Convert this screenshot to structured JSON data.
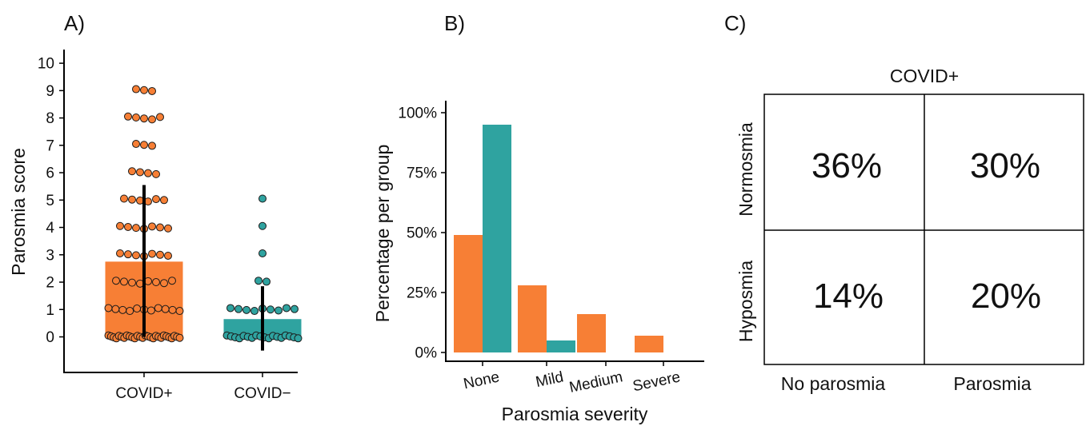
{
  "panels": {
    "a": "A)",
    "b": "B)",
    "c": "C)"
  },
  "colors": {
    "covid_pos": "#f77f35",
    "covid_neg": "#2fa3a0",
    "point_stroke": "#1a1a1a",
    "errorbar": "#000000"
  },
  "chart_data": [
    {
      "type": "bar",
      "ylabel": "Parosmia score",
      "xlabel": "",
      "categories": [
        "COVID+",
        "COVID−"
      ],
      "yticks": [
        0,
        1,
        2,
        3,
        4,
        5,
        6,
        7,
        8,
        9,
        10
      ],
      "ylim": [
        -1.3,
        10.5
      ],
      "means": [
        2.75,
        0.65
      ],
      "error_bars": [
        [
          0,
          5.55
        ],
        [
          -0.5,
          1.85
        ]
      ],
      "bar_colors": [
        "#f77f35",
        "#2fa3a0"
      ],
      "points": [
        [
          0,
          0,
          0,
          0,
          0,
          0,
          0,
          0,
          0,
          0,
          0,
          0,
          0,
          0,
          0,
          0,
          0,
          0,
          0,
          0,
          0,
          0,
          0,
          0,
          0,
          0,
          0,
          0,
          1,
          1,
          1,
          1,
          1,
          1,
          1,
          1,
          1,
          1,
          1,
          2,
          2,
          2,
          2,
          2,
          2,
          2,
          2,
          3,
          3,
          3,
          3,
          3,
          3,
          3,
          4,
          4,
          4,
          4,
          4,
          4,
          4,
          5,
          5,
          5,
          5,
          5,
          5,
          6,
          6,
          6,
          6,
          7,
          7,
          7,
          8,
          8,
          8,
          8,
          8,
          9,
          9,
          9
        ],
        [
          0,
          0,
          0,
          0,
          0,
          0,
          0,
          0,
          0,
          0,
          0,
          0,
          0,
          0,
          0,
          0,
          0,
          0,
          1,
          1,
          1,
          1,
          1,
          1,
          1,
          1,
          1,
          2,
          2,
          3,
          4,
          5
        ]
      ]
    },
    {
      "type": "bar",
      "xlabel": "Parosmia severity",
      "ylabel": "Percentage per group",
      "categories": [
        "None",
        "Mild",
        "Medium",
        "Severe"
      ],
      "yticks": [
        "0%",
        "25%",
        "50%",
        "75%",
        "100%"
      ],
      "ylim": [
        0,
        100
      ],
      "series": [
        {
          "values": [
            49,
            28,
            16,
            7
          ]
        },
        {
          "values": [
            95,
            5,
            0,
            0
          ]
        }
      ]
    },
    {
      "type": "table",
      "title": "COVID+",
      "columns": [
        "No parosmia",
        "Parosmia"
      ],
      "rows": [
        "Normosmia",
        "Hyposmia"
      ],
      "cells": [
        [
          "36%",
          "30%"
        ],
        [
          "14%",
          "20%"
        ]
      ]
    }
  ]
}
